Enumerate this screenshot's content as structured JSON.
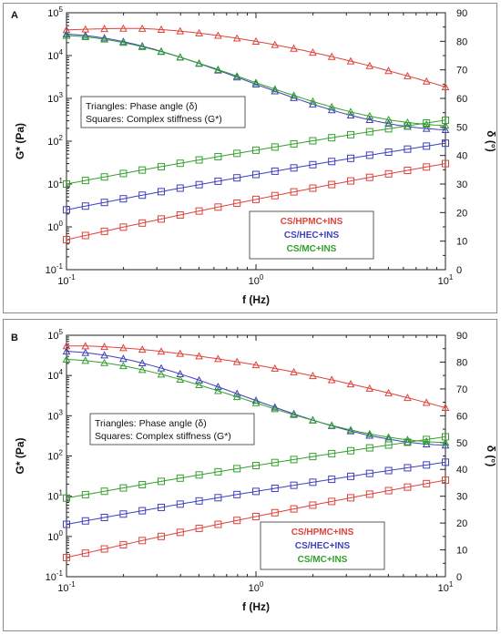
{
  "chart_data": [
    {
      "panel": "A",
      "type": "scatter",
      "xlabel": "f (Hz)",
      "ylabel_left": "G* (Pa)",
      "ylabel_right": "δ (°)",
      "x_scale": "log",
      "xlim": [
        0.1,
        10
      ],
      "x_ticks": [
        "10-1",
        "100",
        "101"
      ],
      "y_left_scale": "log",
      "ylim_left": [
        0.1,
        100000
      ],
      "y_left_ticks": [
        "10-1",
        "100",
        "101",
        "102",
        "103",
        "104",
        "105"
      ],
      "ylim_right": [
        0,
        90
      ],
      "y_right_ticks": [
        "0",
        "10",
        "20",
        "30",
        "40",
        "50",
        "60",
        "70",
        "80",
        "90"
      ],
      "grid": false,
      "annotation": [
        "Triangles: Phase angle (δ)",
        "Squares: Complex stiffness (G*)"
      ],
      "legend_position": "bottom-right",
      "series": [
        {
          "name": "CS/HPMC+INS",
          "color": "#e0413b",
          "phase_angle": {
            "x": [
              0.1,
              10
            ],
            "y": [
              84,
              64
            ],
            "peak": 84.5,
            "peak_x": 0.23
          },
          "complex_stiffness": {
            "x": [
              0.1,
              10
            ],
            "y": [
              0.5,
              30
            ]
          }
        },
        {
          "name": "CS/HEC+INS",
          "color": "#3f3fbf",
          "phase_angle": {
            "x": [
              0.1,
              10
            ],
            "y": [
              82.5,
              49
            ]
          },
          "complex_stiffness": {
            "x": [
              0.1,
              10
            ],
            "y": [
              2.5,
              90
            ]
          }
        },
        {
          "name": "CS/MC+INS",
          "color": "#33a02c",
          "phase_angle": {
            "x": [
              0.1,
              10
            ],
            "y": [
              82,
              50.5
            ]
          },
          "complex_stiffness": {
            "x": [
              0.1,
              10
            ],
            "y": [
              10,
              310
            ]
          }
        }
      ]
    },
    {
      "panel": "B",
      "type": "scatter",
      "xlabel": "f (Hz)",
      "ylabel_left": "G* (Pa)",
      "ylabel_right": "δ (°)",
      "x_scale": "log",
      "xlim": [
        0.1,
        10
      ],
      "x_ticks": [
        "10-1",
        "100",
        "101"
      ],
      "y_left_scale": "log",
      "ylim_left": [
        0.1,
        100000
      ],
      "y_left_ticks": [
        "10-1",
        "100",
        "101",
        "102",
        "103",
        "104",
        "105"
      ],
      "ylim_right": [
        0,
        90
      ],
      "y_right_ticks": [
        "0",
        "10",
        "20",
        "30",
        "40",
        "50",
        "60",
        "70",
        "80",
        "90"
      ],
      "grid": false,
      "annotation": [
        "Triangles: Phase angle (δ)",
        "Squares: Complex stiffness (G*)"
      ],
      "legend_position": "bottom-right",
      "series": [
        {
          "name": "CS/HPMC+INS",
          "color": "#e0413b",
          "phase_angle": {
            "x": [
              0.1,
              10
            ],
            "y": [
              86,
              63
            ],
            "peak": 86,
            "peak_x": 0.12
          },
          "complex_stiffness": {
            "x": [
              0.1,
              10
            ],
            "y": [
              0.3,
              25
            ]
          }
        },
        {
          "name": "CS/HEC+INS",
          "color": "#3f3fbf",
          "phase_angle": {
            "x": [
              0.1,
              10
            ],
            "y": [
              84,
              49
            ]
          },
          "complex_stiffness": {
            "x": [
              0.1,
              10
            ],
            "y": [
              2,
              70
            ]
          }
        },
        {
          "name": "CS/MC+INS",
          "color": "#33a02c",
          "phase_angle": {
            "x": [
              0.1,
              10
            ],
            "y": [
              81,
              50
            ]
          },
          "complex_stiffness": {
            "x": [
              0.1,
              10
            ],
            "y": [
              9,
              300
            ]
          }
        }
      ]
    }
  ]
}
